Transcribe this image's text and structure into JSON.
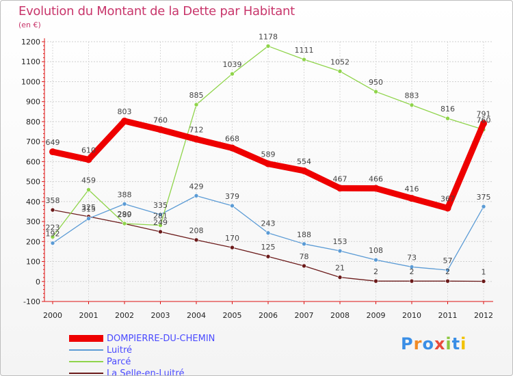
{
  "chart_data": {
    "type": "line",
    "title": "Evolution du Montant de la Dette par Habitant",
    "subtitle": "(en €)",
    "x": [
      "2000",
      "2001",
      "2002",
      "2003",
      "2004",
      "2005",
      "2006",
      "2007",
      "2008",
      "2009",
      "2010",
      "2011",
      "2012"
    ],
    "ylim": [
      -100,
      1200
    ],
    "yticks": [
      -100,
      0,
      100,
      200,
      300,
      400,
      500,
      600,
      700,
      800,
      900,
      1000,
      1100,
      1200
    ],
    "grid": true,
    "legend_position": "bottom-left",
    "series": [
      {
        "name": "DOMPIERRE-DU-CHEMIN",
        "color": "#ee0000",
        "values": [
          649,
          610,
          803,
          760,
          712,
          668,
          589,
          554,
          467,
          466,
          416,
          367,
          791
        ]
      },
      {
        "name": "Luitré",
        "color": "#5b9bd5",
        "values": [
          192,
          315,
          388,
          335,
          429,
          379,
          243,
          188,
          153,
          108,
          73,
          57,
          375
        ]
      },
      {
        "name": "Parcé",
        "color": "#8fd44a",
        "values": [
          223,
          459,
          290,
          281,
          885,
          1039,
          1178,
          1111,
          1052,
          950,
          883,
          816,
          760
        ]
      },
      {
        "name": "La Selle-en-Luitré",
        "color": "#6b1a1a",
        "values": [
          358,
          325,
          289,
          249,
          208,
          170,
          125,
          78,
          21,
          2,
          2,
          2,
          1
        ]
      }
    ]
  },
  "logo": {
    "text": "Proxiti",
    "colors": [
      "#3a8ee6",
      "#f08a24",
      "#3a8ee6",
      "#e84b3c",
      "#8cc63f",
      "#3a8ee6",
      "#f2c200"
    ]
  }
}
